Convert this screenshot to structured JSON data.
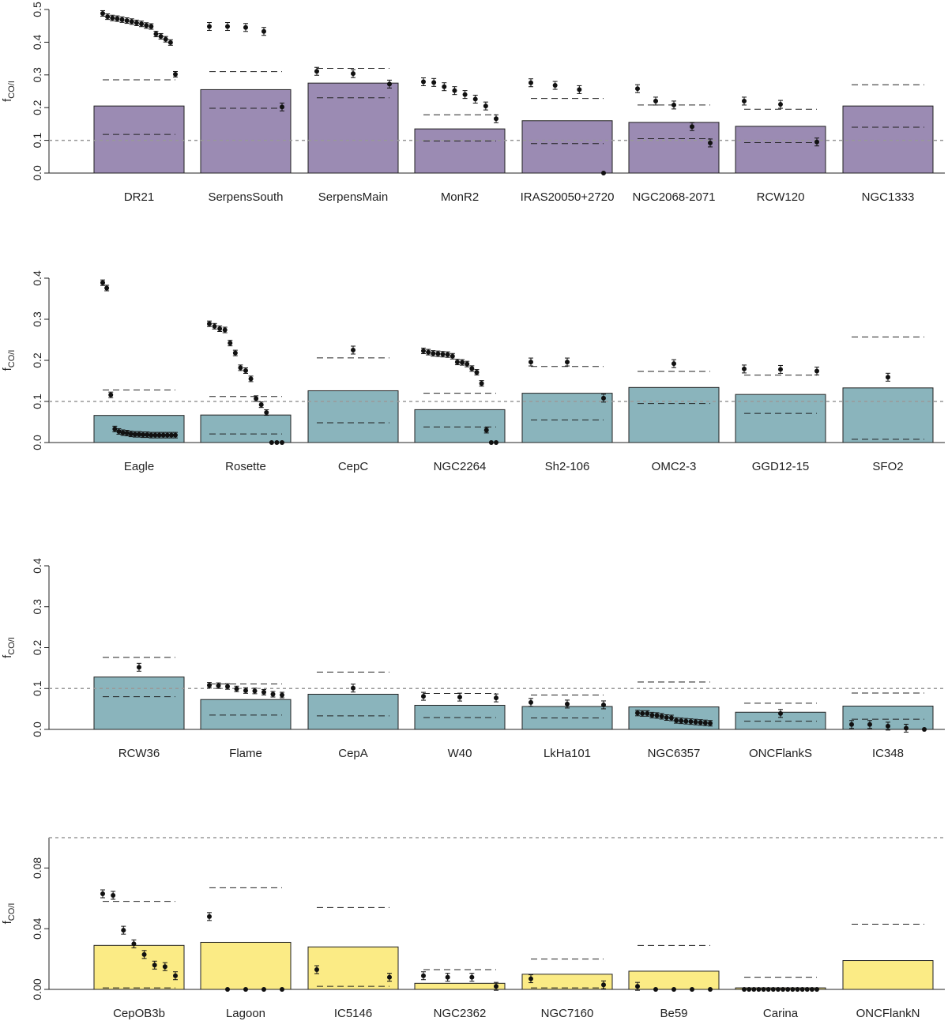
{
  "ylabel": {
    "main": "f",
    "sub": "CO/I"
  },
  "colors": {
    "purple": "#9b8bb3",
    "teal": "#8ab4bc",
    "yellow": "#fbeb85",
    "reference": "#999999"
  },
  "chart_data": [
    {
      "type": "bar",
      "categories": [
        "DR21",
        "SerpensSouth",
        "SerpensMain",
        "MonR2",
        "IRAS20050+2720",
        "NGC2068-2071",
        "RCW120",
        "NGC1333"
      ],
      "values": [
        0.205,
        0.255,
        0.275,
        0.135,
        0.16,
        0.155,
        0.143,
        0.205
      ],
      "upper_dashed": [
        0.285,
        0.31,
        0.32,
        0.178,
        0.228,
        0.208,
        0.195,
        0.27
      ],
      "lower_dashed": [
        0.118,
        0.198,
        0.23,
        0.098,
        0.09,
        0.105,
        0.093,
        0.14
      ],
      "points": [
        [
          0.488,
          0.478,
          0.474,
          0.472,
          0.469,
          0.466,
          0.463,
          0.459,
          0.456,
          0.451,
          0.448,
          0.425,
          0.418,
          0.409,
          0.399,
          0.302
        ],
        [
          0.448,
          0.448,
          0.445,
          0.433,
          0.202
        ],
        [
          0.311,
          0.304,
          0.272
        ],
        [
          0.279,
          0.277,
          0.264,
          0.252,
          0.24,
          0.226,
          0.205,
          0.166
        ],
        [
          0.276,
          0.268,
          0.255,
          0.0
        ],
        [
          0.258,
          0.22,
          0.208,
          0.142,
          0.092
        ],
        [
          0.22,
          0.21,
          0.095
        ],
        []
      ],
      "ylim": [
        0,
        0.5
      ],
      "yticks": [
        "0.0",
        "0.1",
        "0.2",
        "0.3",
        "0.4",
        "0.5"
      ],
      "reference_line": 0.1,
      "bar_color": "purple"
    },
    {
      "type": "bar",
      "categories": [
        "Eagle",
        "Rosette",
        "CepC",
        "NGC2264",
        "Sh2-106",
        "OMC2-3",
        "GGD12-15",
        "SFO2"
      ],
      "values": [
        0.066,
        0.067,
        0.126,
        0.08,
        0.12,
        0.134,
        0.117,
        0.133
      ],
      "upper_dashed": [
        0.128,
        0.112,
        0.206,
        0.12,
        0.185,
        0.173,
        0.164,
        0.257
      ],
      "lower_dashed": [
        0.0,
        0.021,
        0.048,
        0.038,
        0.055,
        0.095,
        0.071,
        0.008
      ],
      "points": [
        [
          0.389,
          0.376,
          0.116,
          0.033,
          0.027,
          0.024,
          0.023,
          0.021,
          0.02,
          0.02,
          0.019,
          0.019,
          0.018,
          0.018,
          0.018,
          0.018,
          0.018,
          0.018,
          0.018
        ],
        [
          0.289,
          0.283,
          0.277,
          0.274,
          0.242,
          0.218,
          0.182,
          0.175,
          0.155,
          0.107,
          0.092,
          0.073,
          0.0,
          0.0,
          0.0
        ],
        [
          0.225
        ],
        [
          0.223,
          0.22,
          0.217,
          0.216,
          0.215,
          0.214,
          0.21,
          0.196,
          0.195,
          0.191,
          0.18,
          0.171,
          0.144,
          0.03,
          0.0,
          0.0
        ],
        [
          0.196,
          0.196,
          0.108
        ],
        [
          0.192
        ],
        [
          0.179,
          0.178,
          0.174
        ],
        [
          0.159
        ]
      ],
      "ylim": [
        0,
        0.4
      ],
      "yticks": [
        "0.0",
        "0.1",
        "0.2",
        "0.3",
        "0.4"
      ],
      "reference_line": 0.1,
      "bar_color": "teal"
    },
    {
      "type": "bar",
      "categories": [
        "RCW36",
        "Flame",
        "CepA",
        "W40",
        "LkHa101",
        "NGC6357",
        "ONCFlankS",
        "IC348"
      ],
      "values": [
        0.128,
        0.073,
        0.086,
        0.059,
        0.056,
        0.055,
        0.042,
        0.057
      ],
      "upper_dashed": [
        0.176,
        0.111,
        0.14,
        0.088,
        0.084,
        0.116,
        0.064,
        0.089
      ],
      "lower_dashed": [
        0.08,
        0.035,
        0.033,
        0.029,
        0.028,
        0.0,
        0.02,
        0.025
      ],
      "points": [
        [
          0.152
        ],
        [
          0.108,
          0.107,
          0.105,
          0.099,
          0.095,
          0.094,
          0.091,
          0.086,
          0.084
        ],
        [
          0.101
        ],
        [
          0.081,
          0.079,
          0.077
        ],
        [
          0.066,
          0.062,
          0.06
        ],
        [
          0.04,
          0.039,
          0.039,
          0.035,
          0.034,
          0.032,
          0.029,
          0.028,
          0.022,
          0.021,
          0.02,
          0.019,
          0.018,
          0.017,
          0.016,
          0.015
        ],
        [
          0.039
        ],
        [
          0.012,
          0.012,
          0.008,
          0.003,
          0.0
        ]
      ],
      "ylim": [
        0,
        0.4
      ],
      "yticks": [
        "0.0",
        "0.1",
        "0.2",
        "0.3",
        "0.4"
      ],
      "reference_line": 0.1,
      "bar_color": "teal"
    },
    {
      "type": "bar",
      "categories": [
        "CepOB3b",
        "Lagoon",
        "IC5146",
        "NGC2362",
        "NGC7160",
        "Be59",
        "Carina",
        "ONCFlankN"
      ],
      "values": [
        0.029,
        0.031,
        0.028,
        0.004,
        0.01,
        0.012,
        0.001,
        0.019
      ],
      "upper_dashed": [
        0.058,
        0.067,
        0.054,
        0.013,
        0.02,
        0.029,
        0.008,
        0.043
      ],
      "lower_dashed": [
        0.001,
        0.0,
        0.002,
        0.0,
        0.001,
        0.0,
        0.0,
        0.0
      ],
      "points": [
        [
          0.063,
          0.062,
          0.039,
          0.03,
          0.023,
          0.016,
          0.015,
          0.009
        ],
        [
          0.048,
          0.0,
          0.0,
          0.0,
          0.0
        ],
        [
          0.013,
          0.008
        ],
        [
          0.009,
          0.008,
          0.008,
          0.002
        ],
        [
          0.007,
          0.003
        ],
        [
          0.002,
          0.0,
          0.0,
          0.0,
          0.0
        ],
        [
          0.0,
          0.0,
          0.0,
          0.0,
          0.0,
          0.0,
          0.0,
          0.0,
          0.0,
          0.0,
          0.0,
          0.0,
          0.0,
          0.0,
          0.0,
          0.0
        ],
        []
      ],
      "ylim": [
        0,
        0.1
      ],
      "yticks": [
        "0.00",
        "0.04",
        "0.08"
      ],
      "reference_line": 0.1,
      "bar_color": "yellow"
    }
  ]
}
